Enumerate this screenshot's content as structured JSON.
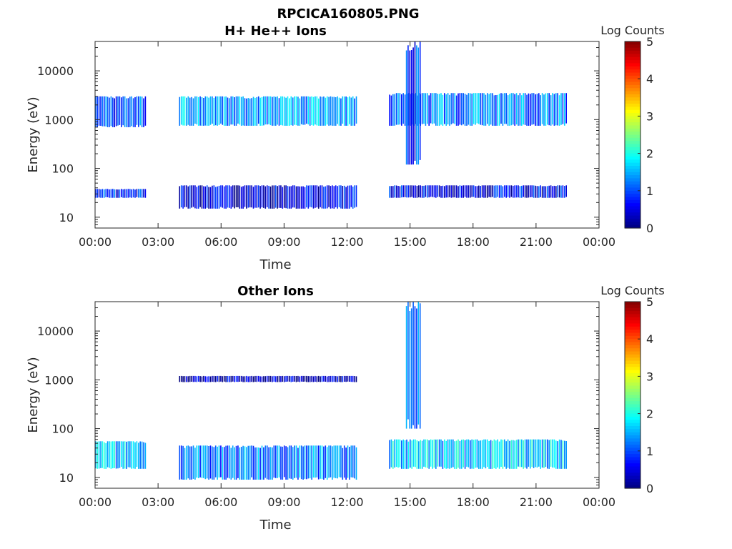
{
  "figure": {
    "filename_title": "RPCICA160805.PNG"
  },
  "chart_data": [
    {
      "type": "heatmap",
      "title": "H+ He++ Ions",
      "xlabel": "Time",
      "ylabel": "Energy (eV)",
      "x_ticks": [
        "00:00",
        "03:00",
        "06:00",
        "09:00",
        "12:00",
        "15:00",
        "18:00",
        "21:00",
        "00:00"
      ],
      "x_range_hours": [
        0,
        24
      ],
      "y_ticks": [
        "10",
        "100",
        "1000",
        "10000"
      ],
      "y_tick_values": [
        10,
        100,
        1000,
        10000
      ],
      "y_range": [
        6,
        40000
      ],
      "y_scale": "log",
      "colorbar": {
        "label": "Log Counts",
        "ticks": [
          "0",
          "1",
          "2",
          "3",
          "4",
          "5"
        ],
        "range": [
          0,
          5
        ],
        "colormap": "jet"
      },
      "bands": [
        {
          "t": [
            0.0,
            2.45
          ],
          "e": [
            700,
            3000
          ],
          "level": 1.0
        },
        {
          "t": [
            0.0,
            2.45
          ],
          "e": [
            25,
            38
          ],
          "level": 0.8
        },
        {
          "t": [
            4.0,
            12.45
          ],
          "e": [
            750,
            3000
          ],
          "level": 1.4
        },
        {
          "t": [
            4.0,
            12.45
          ],
          "e": [
            15,
            45
          ],
          "level": 0.5
        },
        {
          "t": [
            14.0,
            22.45
          ],
          "e": [
            750,
            3500
          ],
          "level": 1.2
        },
        {
          "t": [
            14.0,
            22.45
          ],
          "e": [
            25,
            45
          ],
          "level": 0.6
        },
        {
          "t": [
            14.8,
            15.5
          ],
          "e": [
            120,
            40000
          ],
          "level": 0.9
        }
      ]
    },
    {
      "type": "heatmap",
      "title": "Other Ions",
      "xlabel": "Time",
      "ylabel": "Energy (eV)",
      "x_ticks": [
        "00:00",
        "03:00",
        "06:00",
        "09:00",
        "12:00",
        "15:00",
        "18:00",
        "21:00",
        "00:00"
      ],
      "x_range_hours": [
        0,
        24
      ],
      "y_ticks": [
        "10",
        "100",
        "1000",
        "10000"
      ],
      "y_tick_values": [
        10,
        100,
        1000,
        10000
      ],
      "y_range": [
        6,
        40000
      ],
      "y_scale": "log",
      "colorbar": {
        "label": "Log Counts",
        "ticks": [
          "0",
          "1",
          "2",
          "3",
          "4",
          "5"
        ],
        "range": [
          0,
          5
        ],
        "colormap": "jet"
      },
      "bands": [
        {
          "t": [
            0.0,
            2.45
          ],
          "e": [
            15,
            55
          ],
          "level": 1.5
        },
        {
          "t": [
            4.0,
            12.45
          ],
          "e": [
            9,
            45
          ],
          "level": 1.2
        },
        {
          "t": [
            4.0,
            12.45
          ],
          "e": [
            900,
            1200
          ],
          "level": 0.3
        },
        {
          "t": [
            14.0,
            22.45
          ],
          "e": [
            15,
            60
          ],
          "level": 1.6
        },
        {
          "t": [
            14.8,
            15.5
          ],
          "e": [
            100,
            40000
          ],
          "level": 1.0
        }
      ]
    }
  ]
}
